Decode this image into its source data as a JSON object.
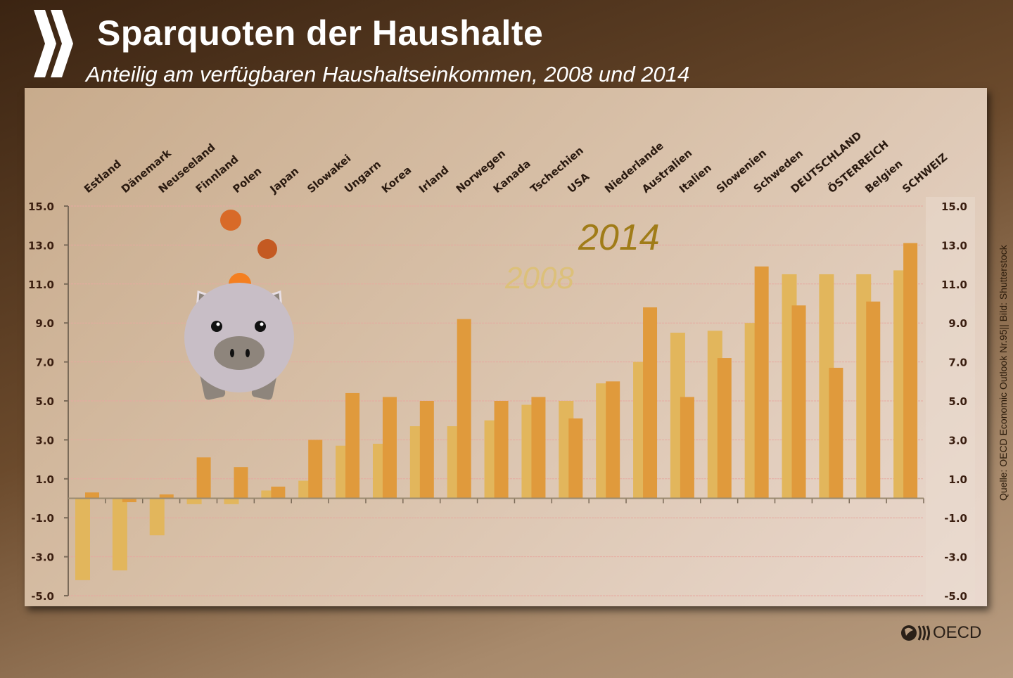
{
  "header": {
    "title": "Sparquoten der Haushalte",
    "subtitle": "Anteilig am verfügbaren Haushaltseinkommen, 2008 und 2014"
  },
  "source": "Quelle: OECD Economic Outlook Nr.95|| Bild: Shutterstock",
  "logo_text": "OECD",
  "colors": {
    "series_2008": "#e2b65c",
    "series_2014": "#e09a3c",
    "label_2014": "#a07c18",
    "label_2008": "#dcc07a",
    "background": "#5a3a20"
  },
  "chart_data": {
    "type": "bar",
    "title": "Sparquoten der Haushalte",
    "subtitle": "Anteilig am verfügbaren Haushaltseinkommen, 2008 und 2014",
    "categories": [
      "Estland",
      "Dänemark",
      "Neuseeland",
      "Finnland",
      "Polen",
      "Japan",
      "Slowakei",
      "Ungarn",
      "Korea",
      "Irland",
      "Norwegen",
      "Kanada",
      "Tschechien",
      "USA",
      "Niederlande",
      "Australien",
      "Italien",
      "Slowenien",
      "Schweden",
      "DEUTSCHLAND",
      "ÖSTERREICH",
      "Belgien",
      "SCHWEIZ"
    ],
    "series": [
      {
        "name": "2008",
        "values": [
          -4.2,
          -3.7,
          -1.9,
          -0.3,
          -0.3,
          0.4,
          0.9,
          2.7,
          2.8,
          3.7,
          3.7,
          4.0,
          4.8,
          5.0,
          5.9,
          7.0,
          8.5,
          8.6,
          9.0,
          11.5,
          11.5,
          11.5,
          11.7
        ]
      },
      {
        "name": "2014",
        "values": [
          0.3,
          -0.2,
          0.2,
          2.1,
          1.6,
          0.6,
          3.0,
          5.4,
          5.2,
          5.0,
          9.2,
          5.0,
          5.2,
          4.1,
          6.0,
          9.8,
          5.2,
          7.2,
          11.9,
          9.9,
          6.7,
          10.1,
          13.1
        ]
      }
    ],
    "ylim": [
      -5,
      15
    ],
    "yticks": [
      "15.0",
      "13.0",
      "11.0",
      "9.0",
      "7.0",
      "5.0",
      "3.0",
      "1.0",
      "-1.0",
      "-3.0",
      "-5.0"
    ],
    "grid": true,
    "legend_placement": "inside-top"
  }
}
